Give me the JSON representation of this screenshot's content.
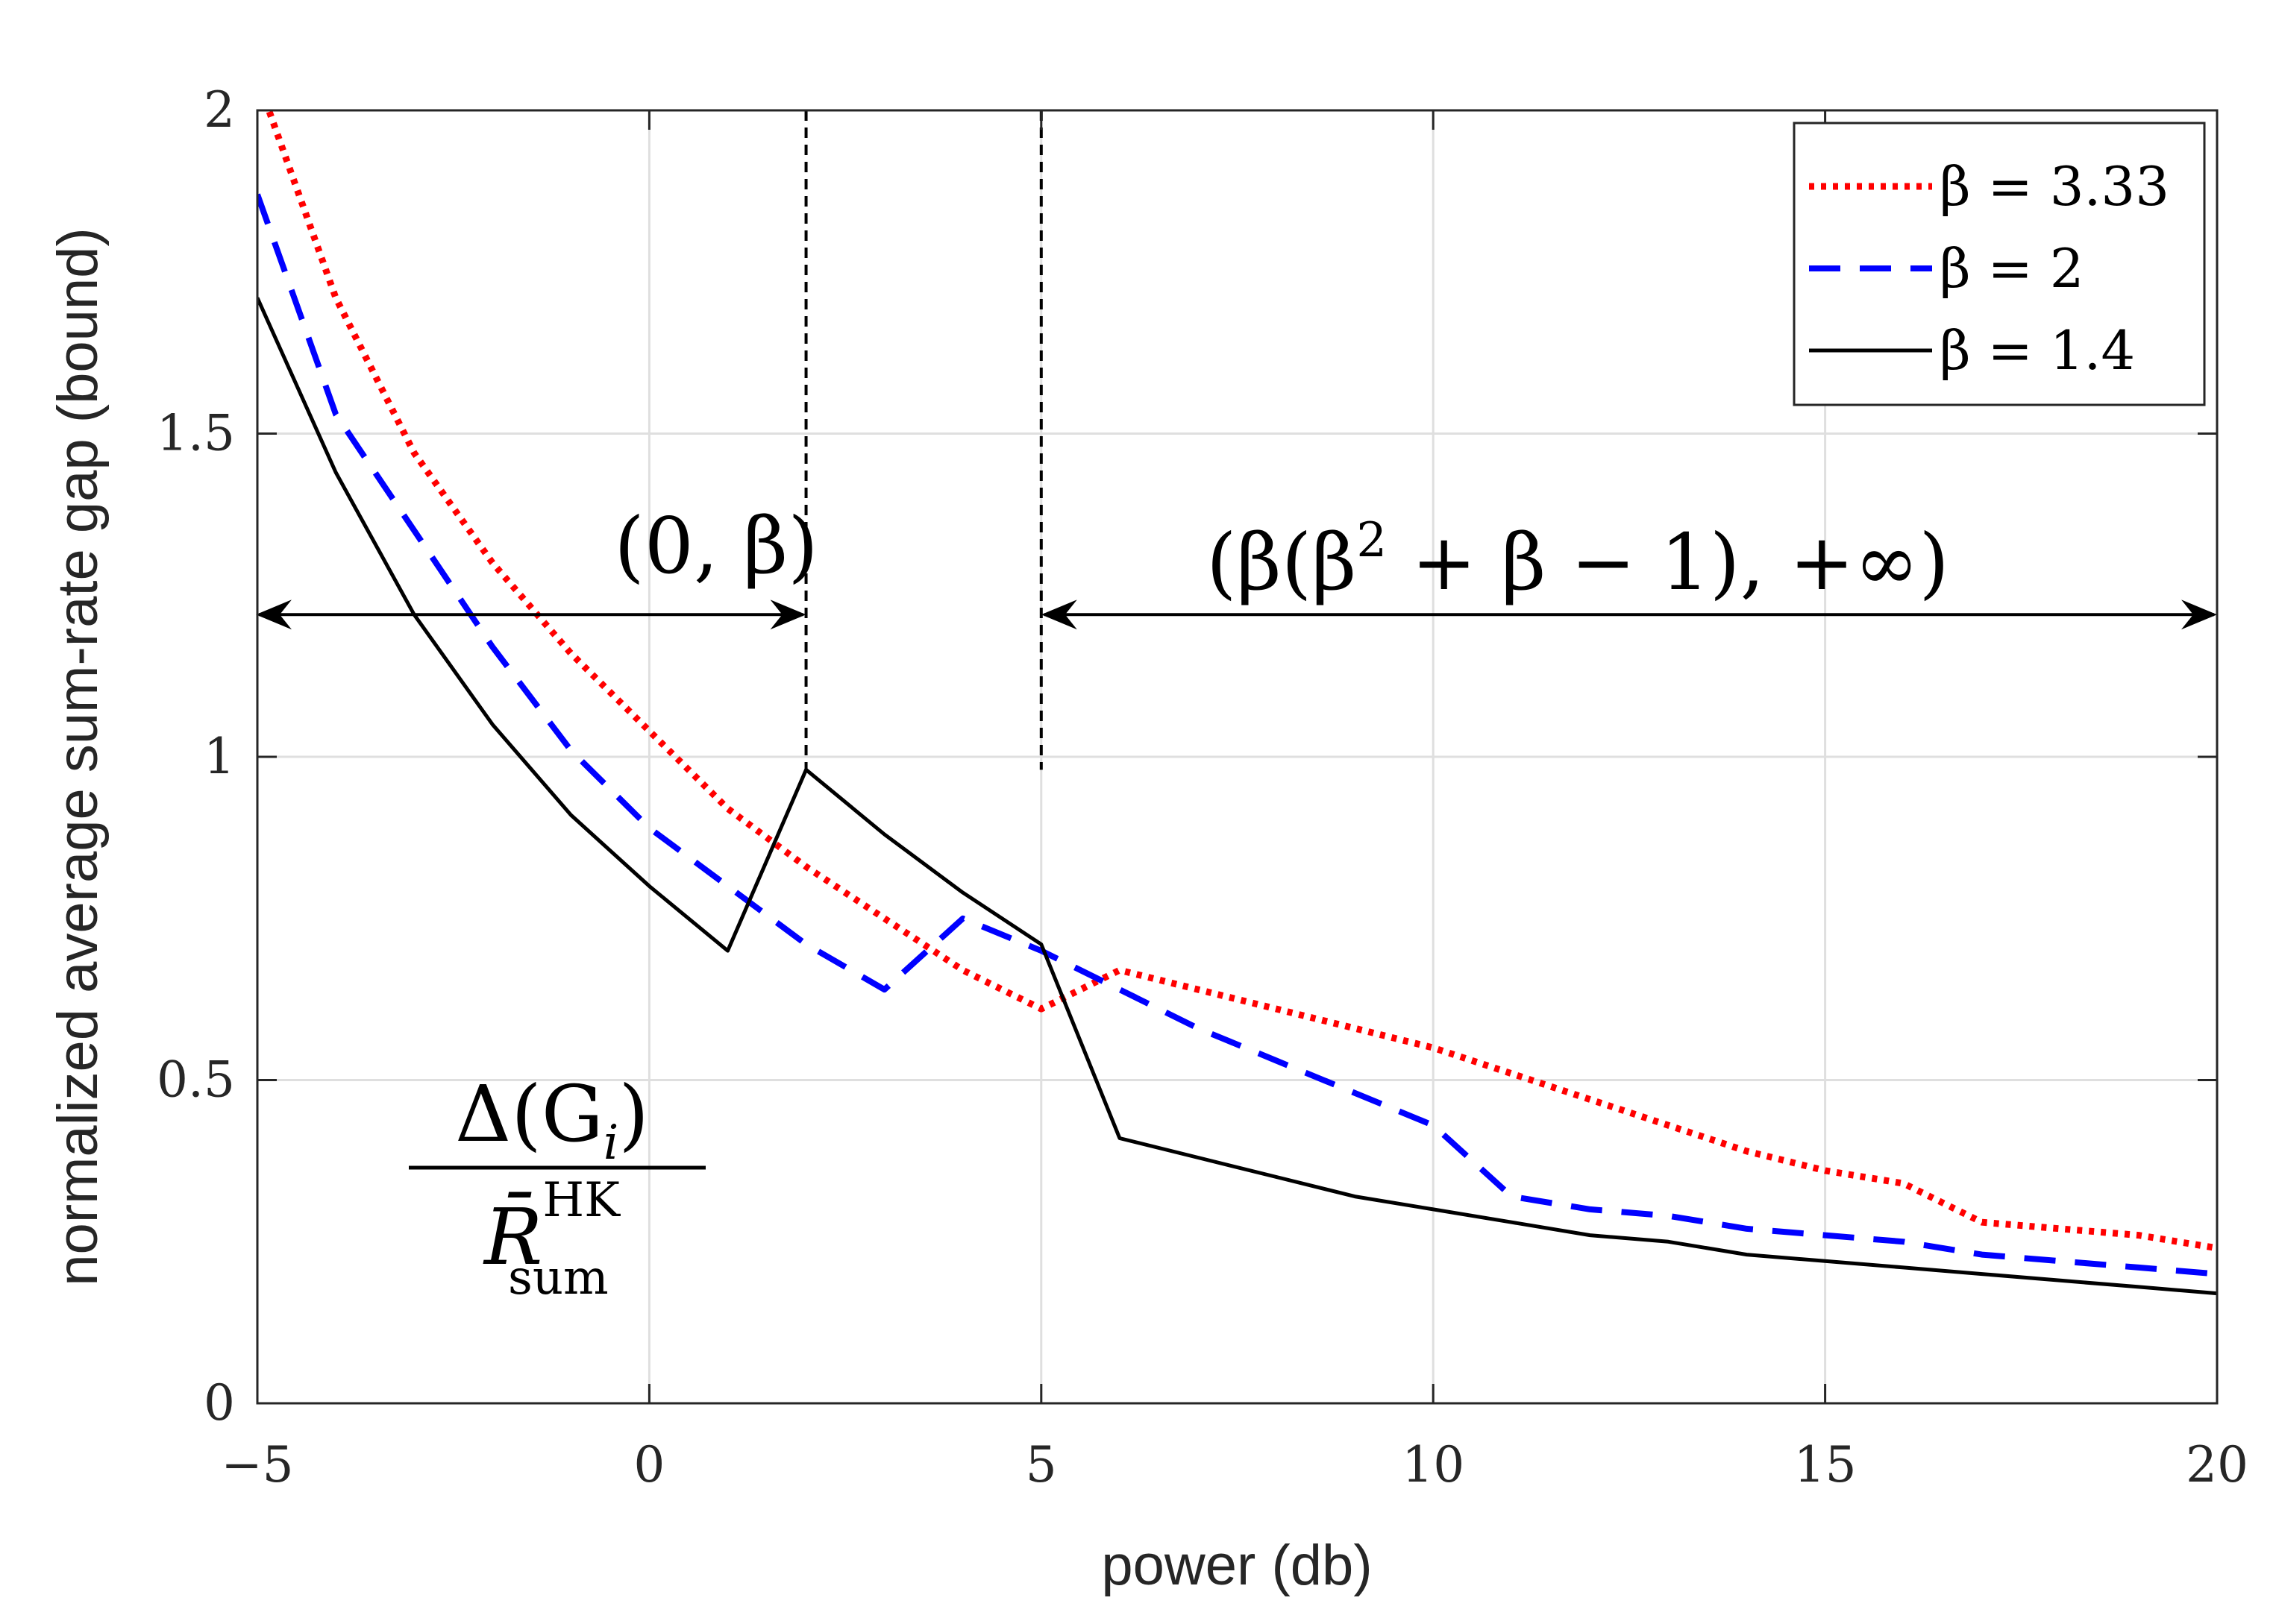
{
  "chart_data": {
    "type": "line",
    "title": "",
    "xlabel": "power (db)",
    "ylabel": "normalized average sum-rate gap (bound)",
    "xlim": [
      -5,
      20
    ],
    "ylim": [
      0,
      2
    ],
    "xticks": [
      -5,
      0,
      5,
      10,
      15,
      20
    ],
    "xtick_labels": [
      "−5",
      "0",
      "5",
      "10",
      "15",
      "20"
    ],
    "yticks": [
      0,
      0.5,
      1,
      1.5,
      2
    ],
    "ytick_labels": [
      "0",
      "0.5",
      "1",
      "1.5",
      "2"
    ],
    "grid": true,
    "legend_position": "top-right",
    "series": [
      {
        "name": "β = 3.33",
        "color": "#ff0000",
        "style": "dotted",
        "x": [
          -5,
          -4,
          -3,
          -2,
          -1,
          0,
          1,
          2,
          3,
          4,
          5,
          6,
          7,
          8,
          9,
          10,
          11,
          12,
          13,
          14,
          15,
          16,
          17,
          18,
          19,
          20
        ],
        "y": [
          2.05,
          1.71,
          1.47,
          1.3,
          1.16,
          1.04,
          0.92,
          0.83,
          0.75,
          0.67,
          0.61,
          0.67,
          0.64,
          0.61,
          0.58,
          0.55,
          0.51,
          0.47,
          0.43,
          0.39,
          0.36,
          0.34,
          0.28,
          0.27,
          0.26,
          0.24
        ]
      },
      {
        "name": "β = 2",
        "color": "#0000ff",
        "style": "dashed",
        "x": [
          -5,
          -4,
          -3,
          -2,
          -1,
          0,
          1,
          2,
          3,
          4,
          5,
          6,
          7,
          8,
          9,
          10,
          11,
          12,
          13,
          14,
          15,
          16,
          17,
          18,
          19,
          20
        ],
        "y": [
          1.87,
          1.53,
          1.35,
          1.17,
          1.01,
          0.89,
          0.8,
          0.71,
          0.64,
          0.75,
          0.7,
          0.64,
          0.58,
          0.53,
          0.48,
          0.43,
          0.32,
          0.3,
          0.29,
          0.27,
          0.26,
          0.25,
          0.23,
          0.22,
          0.21,
          0.2
        ]
      },
      {
        "name": "β = 1.4",
        "color": "#000000",
        "style": "solid",
        "x": [
          -5,
          -4,
          -3,
          -2,
          -1,
          0,
          1,
          2,
          3,
          4,
          5,
          6,
          7,
          8,
          9,
          10,
          11,
          12,
          13,
          14,
          15,
          16,
          17,
          18,
          19,
          20
        ],
        "y": [
          1.71,
          1.44,
          1.22,
          1.05,
          0.91,
          0.8,
          0.7,
          0.98,
          0.88,
          0.79,
          0.71,
          0.41,
          0.38,
          0.35,
          0.32,
          0.3,
          0.28,
          0.26,
          0.25,
          0.23,
          0.22,
          0.21,
          0.2,
          0.19,
          0.18,
          0.17
        ]
      }
    ],
    "annotations": {
      "region1_label": "(0, β)",
      "region1_range": [
        -5,
        2
      ],
      "region2_label_main": "(β(β",
      "region2_superscript": "2",
      "region2_label_rest": " + β − 1), +∞)",
      "region2_range": [
        5,
        20
      ],
      "arrow_y": 1.22,
      "vlines_x": [
        2,
        5
      ],
      "formula_numerator": "Δ(G",
      "formula_numerator_sub": "i",
      "formula_numerator_close": ")",
      "formula_denominator": "R̄",
      "formula_denominator_sup": "HK",
      "formula_denominator_sub": "sum"
    }
  }
}
